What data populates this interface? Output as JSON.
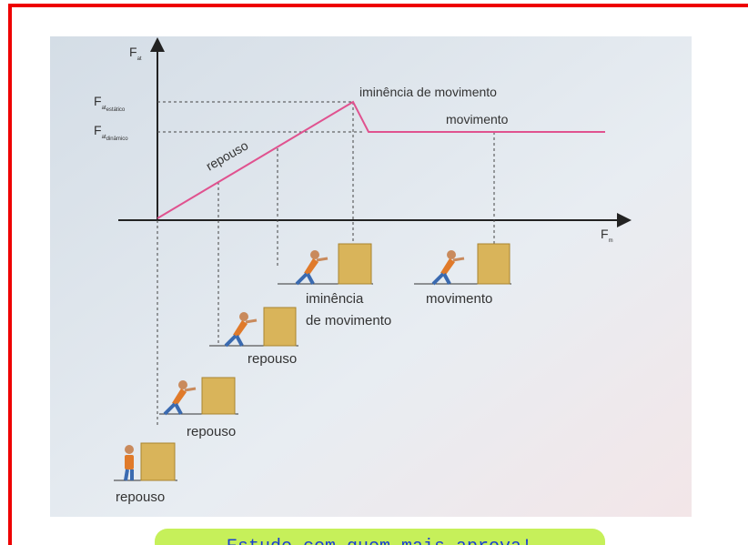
{
  "axes": {
    "y_label": "F",
    "y_label_sub": "at",
    "x_label": "F",
    "x_label_sub": "m"
  },
  "levels": {
    "static": {
      "label": "F",
      "sub": "at",
      "subsub": "estático"
    },
    "dynamic": {
      "label": "F",
      "sub": "at",
      "subsub": "dinâmico"
    }
  },
  "graph_labels": {
    "imminence": "iminência de movimento",
    "motion": "movimento",
    "rest": "repouso"
  },
  "captions": [
    "repouso",
    "repouso",
    "repouso",
    "iminência",
    "de movimento",
    "movimento"
  ],
  "banner": "Estude com quem mais aprova!"
}
